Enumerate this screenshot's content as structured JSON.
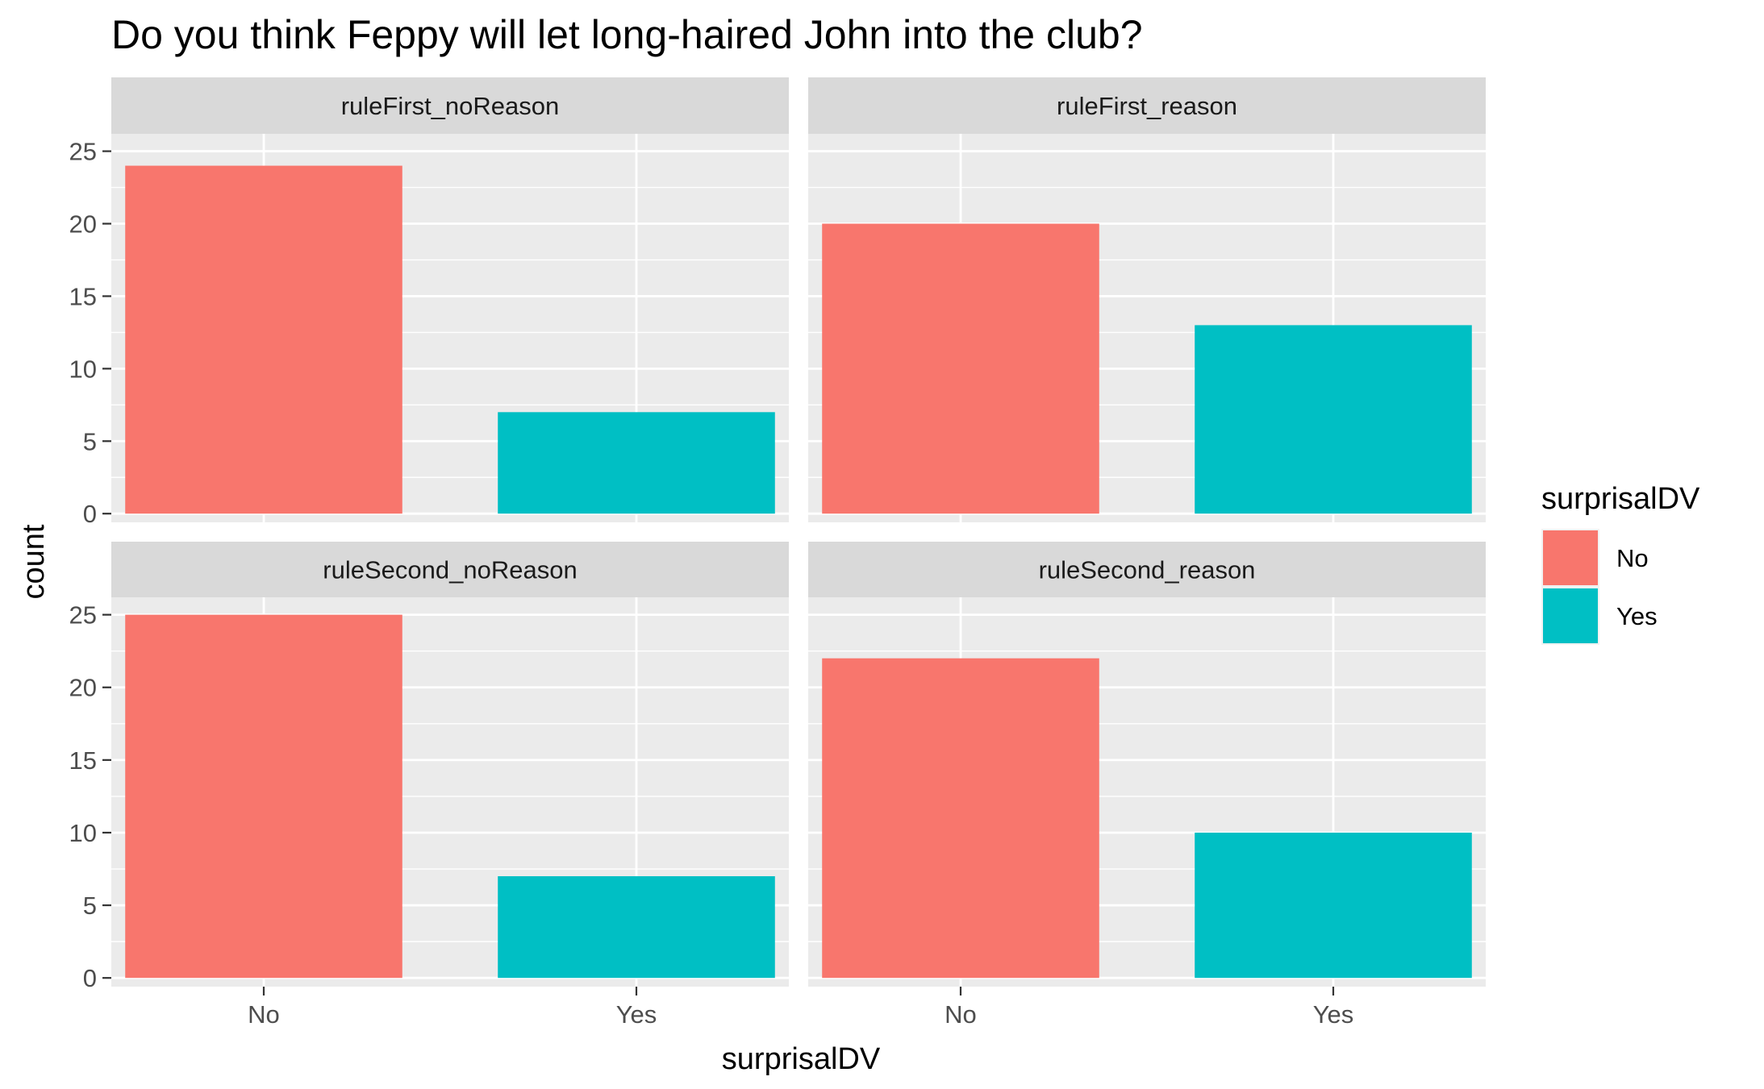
{
  "chart_data": {
    "type": "bar",
    "title": "Do you think Feppy will let long-haired John into the club?",
    "xlabel": "surprisalDV",
    "ylabel": "count",
    "categories": [
      "No",
      "Yes"
    ],
    "yticks": [
      0,
      5,
      10,
      15,
      20,
      25
    ],
    "ylim": [
      0,
      26
    ],
    "grid": true,
    "facets": [
      {
        "name": "ruleFirst_noReason",
        "values": [
          24,
          7
        ]
      },
      {
        "name": "ruleFirst_reason",
        "values": [
          20,
          13
        ]
      },
      {
        "name": "ruleSecond_noReason",
        "values": [
          25,
          7
        ]
      },
      {
        "name": "ruleSecond_reason",
        "values": [
          22,
          10
        ]
      }
    ],
    "legend": {
      "title": "surprisalDV",
      "position": "right",
      "entries": [
        {
          "label": "No",
          "color": "#F8766D"
        },
        {
          "label": "Yes",
          "color": "#00BFC4"
        }
      ]
    },
    "colors": {
      "panel_bg": "#EBEBEB",
      "strip_bg": "#D9D9D9",
      "grid": "#FFFFFF"
    }
  }
}
